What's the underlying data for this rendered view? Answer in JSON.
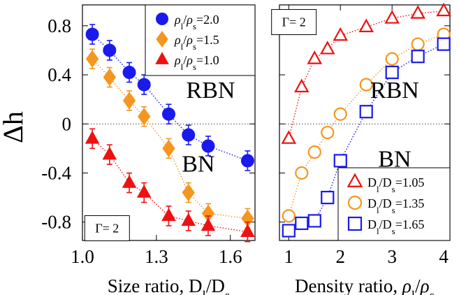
{
  "shared_ylabel": "Δh",
  "chart_data": [
    {
      "type": "scatter",
      "xlabel": "Size ratio, Dl/Ds",
      "xlim": [
        1.0,
        1.7
      ],
      "ylim": [
        -0.95,
        0.97
      ],
      "xticks": [
        1.0,
        1.3,
        1.6
      ],
      "xtick_labels": [
        "1.0",
        "1.3",
        "1.6"
      ],
      "yticks": [
        0.8,
        0.4,
        0,
        -0.4,
        -0.8
      ],
      "ytick_labels": [
        "0.8",
        "0.4",
        "0",
        "-0.4",
        "-0.8"
      ],
      "reference_line_y": 0,
      "legend_position": "top-right",
      "annotations": [
        {
          "text": "RBN",
          "x": 1.52,
          "y": 0.28
        },
        {
          "text": "BN",
          "x": 1.47,
          "y": -0.32
        },
        {
          "text": "Γ= 2",
          "x": 1.1,
          "y": -0.85,
          "boxed": true
        }
      ],
      "series": [
        {
          "name": "ρl/ρs=2.0",
          "marker": "circle",
          "color": "#1a1aee",
          "filled": true,
          "errorbars": true,
          "x": [
            1.04,
            1.11,
            1.19,
            1.25,
            1.35,
            1.43,
            1.51,
            1.67
          ],
          "y": [
            0.73,
            0.6,
            0.42,
            0.32,
            0.08,
            -0.09,
            -0.18,
            -0.3
          ]
        },
        {
          "name": "ρl/ρs=1.5",
          "marker": "diamond",
          "color": "#f5961e",
          "filled": true,
          "errorbars": true,
          "x": [
            1.04,
            1.11,
            1.19,
            1.25,
            1.35,
            1.43,
            1.51,
            1.67
          ],
          "y": [
            0.53,
            0.38,
            0.19,
            0.06,
            -0.2,
            -0.56,
            -0.73,
            -0.77
          ]
        },
        {
          "name": "ρl/ρs=1.0",
          "marker": "triangle",
          "color": "#ee1111",
          "filled": true,
          "errorbars": true,
          "x": [
            1.04,
            1.11,
            1.19,
            1.25,
            1.35,
            1.43,
            1.51,
            1.67
          ],
          "y": [
            -0.12,
            -0.25,
            -0.48,
            -0.56,
            -0.75,
            -0.79,
            -0.83,
            -0.88
          ]
        }
      ]
    },
    {
      "type": "scatter",
      "xlabel": "Density ratio, ρl/ρs",
      "xlim": [
        0.82,
        4.12
      ],
      "ylim": [
        -0.95,
        0.97
      ],
      "xticks": [
        1,
        2,
        3,
        4
      ],
      "xtick_labels": [
        "1",
        "2",
        "3",
        "4"
      ],
      "yticks": [
        0.8,
        0.4,
        0,
        -0.4,
        -0.8
      ],
      "reference_line_y": 0,
      "legend_position": "bottom-right",
      "annotations": [
        {
          "text": "RBN",
          "x": 3.05,
          "y": 0.28
        },
        {
          "text": "BN",
          "x": 3.05,
          "y": -0.28
        },
        {
          "text": "Γ= 2",
          "x": 1.1,
          "y": 0.83,
          "boxed": true
        }
      ],
      "series": [
        {
          "name": "Dl/Ds=1.05",
          "marker": "triangle",
          "color": "#ee1111",
          "filled": false,
          "x": [
            1.0,
            1.25,
            1.5,
            1.75,
            2.0,
            2.5,
            3.0,
            3.5,
            4.0
          ],
          "y": [
            -0.12,
            0.3,
            0.53,
            0.61,
            0.72,
            0.79,
            0.86,
            0.9,
            0.92
          ]
        },
        {
          "name": "Dl/Ds=1.35",
          "marker": "circle",
          "color": "#f5961e",
          "filled": false,
          "x": [
            1.0,
            1.25,
            1.5,
            1.75,
            2.0,
            2.5,
            3.0,
            3.5,
            4.0
          ],
          "y": [
            -0.75,
            -0.4,
            -0.23,
            -0.07,
            0.08,
            0.32,
            0.53,
            0.65,
            0.73
          ]
        },
        {
          "name": "Dl/Ds=1.65",
          "marker": "square",
          "color": "#1a1aee",
          "filled": false,
          "x": [
            1.0,
            1.25,
            1.5,
            1.75,
            2.0,
            2.5,
            3.0,
            3.5,
            4.0
          ],
          "y": [
            -0.87,
            -0.81,
            -0.79,
            -0.6,
            -0.3,
            0.1,
            0.42,
            0.55,
            0.65
          ]
        }
      ]
    }
  ]
}
